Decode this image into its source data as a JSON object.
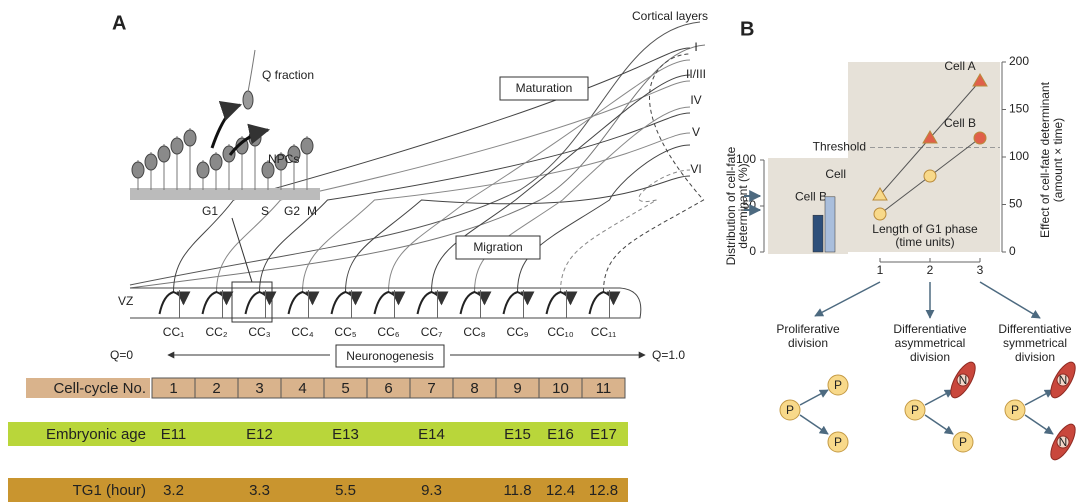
{
  "panel_a": {
    "label": "A",
    "cortical_layers_title": "Cortical layers",
    "layers": [
      "I",
      "II/III",
      "IV",
      "V",
      "VI"
    ],
    "q_fraction": "Q fraction",
    "npcs": "NPCs",
    "phases": [
      "G1",
      "S",
      "G2",
      "M"
    ],
    "maturation": "Maturation",
    "migration": "Migration",
    "vz": "VZ",
    "cell_cycles": [
      "CC₁",
      "CC₂",
      "CC₃",
      "CC₄",
      "CC₅",
      "CC₆",
      "CC₇",
      "CC₈",
      "CC₉",
      "CC₁₀",
      "CC₁₁"
    ],
    "q_start": "Q=0",
    "neuronogenesis": "Neuronogenesis",
    "q_end": "Q=1.0"
  },
  "table": {
    "rows": [
      {
        "label": "Cell-cycle No.",
        "color": "#d9b38c",
        "cells": [
          "1",
          "2",
          "3",
          "4",
          "5",
          "6",
          "7",
          "8",
          "9",
          "10",
          "11"
        ]
      },
      {
        "label": "Embryonic age",
        "color": "#b9d63a",
        "cells": [
          "E11",
          null,
          "E12",
          null,
          "E13",
          null,
          "E14",
          null,
          "E15",
          "E16",
          "E17"
        ]
      },
      {
        "label": "TG1 (hour)",
        "color": "#c9952f",
        "cells": [
          "3.2",
          null,
          "3.3",
          null,
          "5.5",
          null,
          "9.3",
          null,
          "11.8",
          "12.4",
          "12.8"
        ]
      }
    ]
  },
  "panel_b": {
    "label": "B",
    "bar_chart": {
      "type": "bar",
      "y_label": [
        "Distribution of cell-fate",
        "determinant (%)"
      ],
      "categories": [
        "Cell B",
        "Cell A"
      ],
      "values": [
        40,
        60
      ],
      "colors": [
        "#2e4f7a",
        "#a9bedc"
      ],
      "ylim": [
        0,
        100
      ],
      "yticks": [
        0,
        50,
        100
      ]
    },
    "line_chart": {
      "type": "line",
      "x_label": [
        "Length of G1 phase",
        "(time units)"
      ],
      "y_label": [
        "Effect of cell-fate determinant",
        "(amount × time)"
      ],
      "x": [
        1,
        2,
        3
      ],
      "xlim": [
        0.4,
        3.4
      ],
      "xticks": [
        1,
        2,
        3
      ],
      "ylim": [
        0,
        200
      ],
      "yticks": [
        0,
        50,
        100,
        150,
        200
      ],
      "threshold": {
        "label": "Threshold",
        "value": 110
      },
      "below_color": "#f8d98a",
      "above_color": "#e0604a",
      "series": [
        {
          "name": "Cell A",
          "marker": "triangle",
          "values": [
            60,
            120,
            180
          ]
        },
        {
          "name": "Cell B",
          "marker": "circle",
          "values": [
            40,
            80,
            120
          ]
        }
      ]
    },
    "divisions": [
      {
        "label": [
          "Proliferative",
          "division"
        ]
      },
      {
        "label": [
          "Differentiative",
          "asymmetrical",
          "division"
        ]
      },
      {
        "label": [
          "Differentiative",
          "symmetrical",
          "division"
        ]
      }
    ],
    "progenitor": "P",
    "neuron": "N"
  }
}
